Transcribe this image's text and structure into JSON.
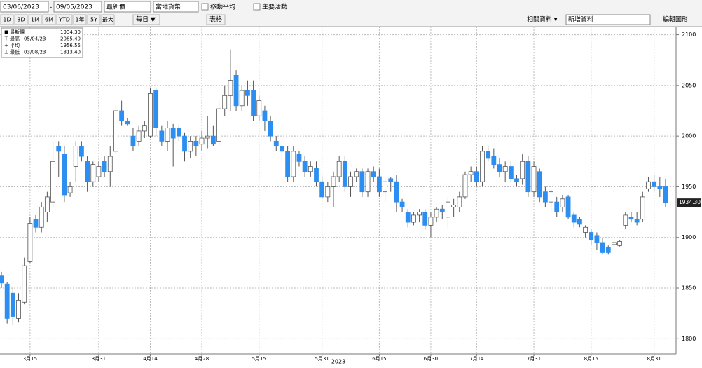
{
  "ui": {
    "date_from": "03/06/2023",
    "date_to": "09/05/2023",
    "field": "最新價",
    "currency": "當地貨幣",
    "moving_avg": "移動平均",
    "key_events": "主要活動",
    "periods": [
      "1D",
      "3D",
      "1M",
      "6M",
      "YTD",
      "1年",
      "5Y",
      "最大"
    ],
    "frequency": "每日 ▼",
    "table": "表格",
    "related": "相關資料 ▾",
    "add_data": "新增資料",
    "edit_chart": "編輯圖形"
  },
  "chart_data": {
    "type": "candlestick",
    "x_label": "2023",
    "legend": [
      {
        "label": "最新價",
        "value": "1934.30"
      },
      {
        "label": "最高",
        "date": "05/04/23",
        "value": "2085.40"
      },
      {
        "label": "平均",
        "value": "1956.55"
      },
      {
        "label": "最低",
        "date": "03/08/23",
        "value": "1813.40"
      }
    ],
    "last_price_tag": "1934.30",
    "up_color": "#ffffff",
    "down_color": "#2c8ef0",
    "categories": [
      null,
      null,
      null,
      null,
      null,
      "3月15",
      null,
      null,
      null,
      null,
      null,
      null,
      null,
      null,
      null,
      null,
      null,
      "3月31",
      null,
      null,
      null,
      null,
      null,
      null,
      null,
      null,
      "4月14",
      null,
      null,
      null,
      null,
      null,
      null,
      null,
      null,
      "4月28",
      null,
      null,
      null,
      null,
      null,
      null,
      null,
      null,
      null,
      "5月15",
      null,
      null,
      null,
      null,
      null,
      null,
      null,
      null,
      null,
      null,
      "5月31",
      null,
      null,
      null,
      null,
      null,
      null,
      null,
      null,
      null,
      "6月15",
      null,
      null,
      null,
      null,
      null,
      null,
      null,
      null,
      "6月30",
      null,
      null,
      null,
      null,
      null,
      null,
      null,
      "7月14",
      null,
      null,
      null,
      null,
      null,
      null,
      null,
      null,
      null,
      "7月31",
      null,
      null,
      null,
      null,
      null,
      null,
      null,
      null,
      null,
      "8月15",
      null,
      null,
      null,
      null,
      null,
      null,
      null,
      null,
      null,
      null,
      "8月31",
      null,
      null
    ],
    "open": [
      1862,
      1854,
      1845,
      1820,
      1836,
      1876,
      1918,
      1910,
      1925,
      1935,
      1990,
      1982,
      1944,
      1970,
      1990,
      1975,
      1955,
      1960,
      1975,
      1965,
      1985,
      2025,
      2015,
      2000,
      1995,
      2005,
      2000,
      2045,
      2005,
      1995,
      2008,
      2008,
      2000,
      1985,
      1995,
      1992,
      1998,
      2000,
      1995,
      2027,
      2040,
      2060,
      2030,
      2045,
      2045,
      2020,
      2025,
      2015,
      1995,
      1990,
      1985,
      1960,
      1982,
      1975,
      1965,
      1968,
      1955,
      1940,
      1950,
      1960,
      1975,
      1950,
      1960,
      1965,
      1945,
      1965,
      1960,
      1945,
      1958,
      1955,
      1935,
      1925,
      1915,
      1922,
      1925,
      1912,
      1920,
      1928,
      1920,
      1930,
      1930,
      1940,
      1962,
      1965,
      1955,
      1985,
      1980,
      1972,
      1965,
      1970,
      1958,
      1958,
      1975,
      1945,
      1965,
      1945,
      1935,
      1935,
      1930,
      1940,
      1922,
      1918,
      1905,
      1905,
      1902,
      1895,
      1890,
      1893,
      1892,
      1912,
      1920,
      1918,
      1918,
      1948,
      1955,
      1950,
      1950
    ],
    "high": [
      1866,
      1856,
      1850,
      1845,
      1880,
      1920,
      1922,
      1935,
      1945,
      1995,
      1995,
      1990,
      1955,
      1995,
      1995,
      1980,
      1975,
      1975,
      1980,
      1990,
      2030,
      2035,
      2018,
      2008,
      2010,
      2015,
      2048,
      2048,
      2010,
      2015,
      2012,
      2010,
      2003,
      2000,
      2000,
      2005,
      2020,
      2010,
      2035,
      2050,
      2085.4,
      2065,
      2050,
      2055,
      2055,
      2040,
      2030,
      2020,
      2000,
      1995,
      1990,
      1990,
      1985,
      1980,
      1975,
      1975,
      1960,
      1955,
      1965,
      1980,
      1980,
      1965,
      1968,
      1968,
      1968,
      1970,
      1968,
      1960,
      1960,
      1962,
      1938,
      1928,
      1925,
      1928,
      1928,
      1925,
      1930,
      1932,
      1940,
      1938,
      1945,
      1965,
      1970,
      1970,
      1990,
      1990,
      1988,
      1978,
      1975,
      1975,
      1962,
      1982,
      1980,
      1975,
      1968,
      1950,
      1948,
      1940,
      1942,
      1942,
      1925,
      1920,
      1912,
      1908,
      1905,
      1900,
      1892,
      1896,
      1897,
      1925,
      1925,
      1925,
      1945,
      1960,
      1962,
      1960,
      1958
    ],
    "low": [
      1850,
      1815,
      1813.4,
      1816,
      1834,
      1875,
      1905,
      1905,
      1915,
      1930,
      1960,
      1935,
      1940,
      1955,
      1975,
      1945,
      1950,
      1955,
      1960,
      1950,
      1983,
      2010,
      2010,
      1985,
      1990,
      1998,
      1998,
      2000,
      1990,
      1985,
      1970,
      1995,
      1975,
      1978,
      1980,
      1985,
      1988,
      1990,
      1990,
      2020,
      2025,
      2025,
      2025,
      2030,
      2015,
      2015,
      2005,
      1995,
      1985,
      1975,
      1955,
      1955,
      1970,
      1960,
      1960,
      1950,
      1938,
      1935,
      1930,
      1955,
      1945,
      1940,
      1955,
      1940,
      1940,
      1955,
      1940,
      1935,
      1945,
      1925,
      1925,
      1910,
      1912,
      1915,
      1908,
      1900,
      1915,
      1918,
      1910,
      1920,
      1925,
      1938,
      1955,
      1950,
      1950,
      1975,
      1968,
      1960,
      1955,
      1955,
      1950,
      1952,
      1940,
      1940,
      1935,
      1930,
      1925,
      1920,
      1925,
      1918,
      1910,
      1910,
      1900,
      1893,
      1888,
      1883,
      1883,
      1890,
      1891,
      1908,
      1915,
      1912,
      1915,
      1945,
      1945,
      1940,
      1930
    ],
    "close": [
      1855,
      1820,
      1822,
      1838,
      1872,
      1914,
      1910,
      1930,
      1940,
      1975,
      1985,
      1942,
      1950,
      1990,
      1980,
      1955,
      1972,
      1970,
      1965,
      1980,
      2025,
      2015,
      2012,
      1990,
      2005,
      2010,
      2042,
      2008,
      1995,
      2008,
      1998,
      2000,
      1985,
      1995,
      1990,
      1998,
      2000,
      1992,
      2027,
      2040,
      2055,
      2030,
      2045,
      2040,
      2020,
      2035,
      2015,
      2000,
      1990,
      1985,
      1960,
      1985,
      1975,
      1965,
      1970,
      1955,
      1940,
      1950,
      1960,
      1975,
      1950,
      1960,
      1965,
      1945,
      1965,
      1960,
      1945,
      1955,
      1955,
      1935,
      1930,
      1915,
      1922,
      1925,
      1912,
      1920,
      1928,
      1925,
      1935,
      1932,
      1940,
      1962,
      1965,
      1955,
      1985,
      1978,
      1972,
      1965,
      1970,
      1958,
      1955,
      1975,
      1945,
      1970,
      1940,
      1935,
      1945,
      1925,
      1938,
      1920,
      1915,
      1913,
      1910,
      1898,
      1895,
      1885,
      1885,
      1895,
      1896,
      1922,
      1918,
      1915,
      1940,
      1955,
      1950,
      1948,
      1934.3
    ],
    "ylim": [
      1785,
      2108
    ],
    "yticks": [
      1800,
      1850,
      1900,
      1950,
      2000,
      2050,
      2100
    ],
    "grid": true
  }
}
